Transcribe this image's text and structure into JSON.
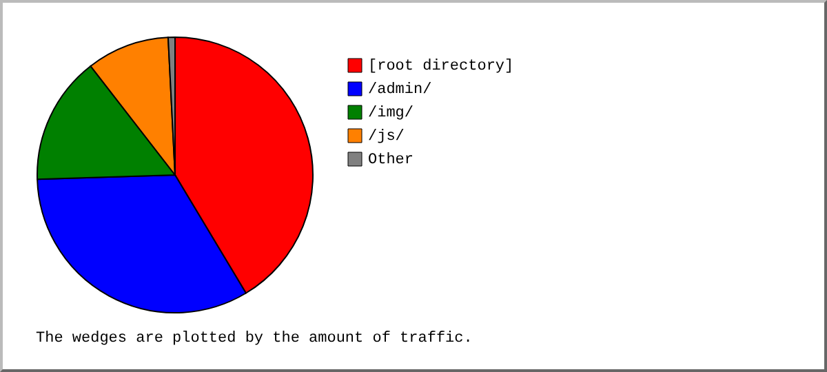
{
  "chart_data": {
    "type": "pie",
    "categories": [
      "[root directory]",
      "/admin/",
      "/img/",
      "/js/",
      "Other"
    ],
    "values": [
      41.4,
      33.1,
      15.0,
      9.7,
      0.8
    ],
    "colors": [
      "#ff0000",
      "#0000ff",
      "#008000",
      "#ff8000",
      "#808080"
    ],
    "legend": "right",
    "annotations": [
      "The wedges are plotted by the amount of traffic."
    ]
  }
}
